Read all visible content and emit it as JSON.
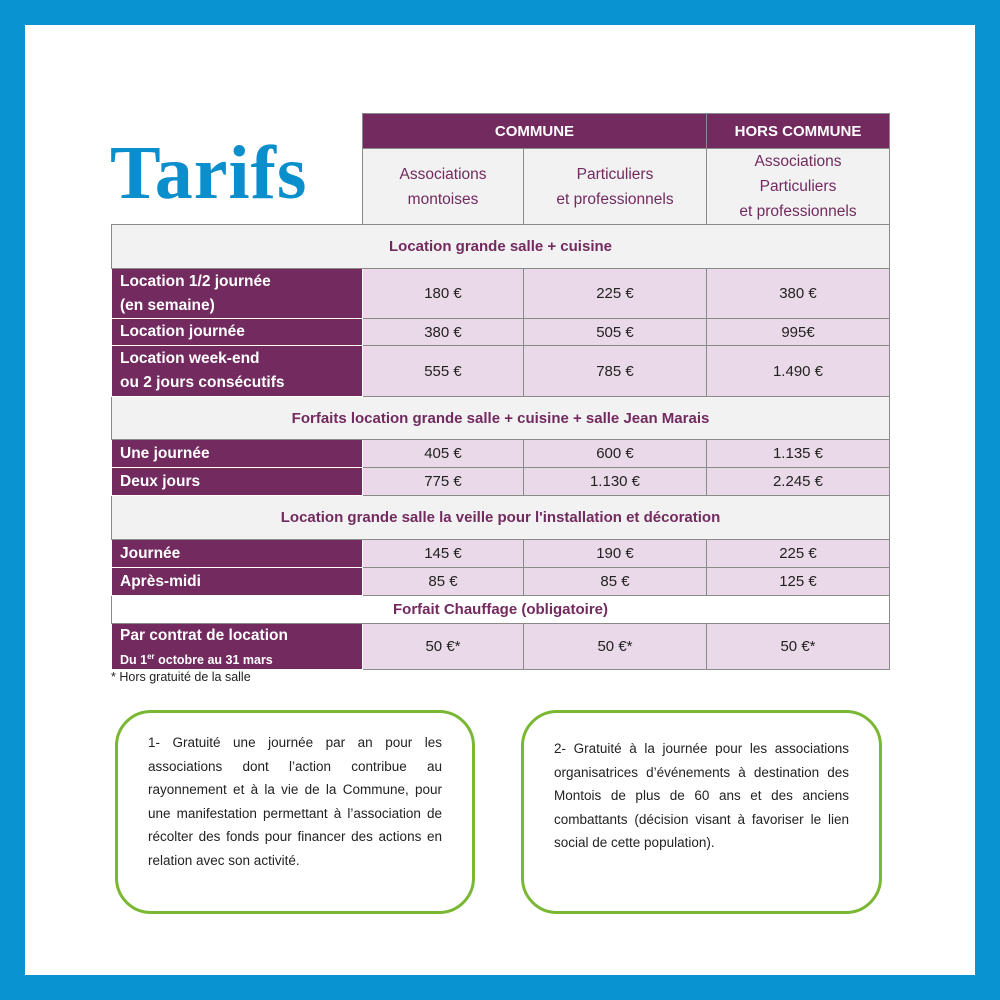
{
  "title": "Tarifs",
  "headers": {
    "commune": "COMMUNE",
    "hors_commune": "HORS COMMUNE",
    "col1": [
      "Associations",
      "montoises"
    ],
    "col2": [
      "Particuliers",
      "et professionnels"
    ],
    "col3": [
      "Associations",
      "Particuliers",
      "et professionnels"
    ]
  },
  "sections": [
    {
      "title": "Location grande salle + cuisine",
      "rows": [
        {
          "label": [
            "Location 1/2 journée",
            "(en semaine)"
          ],
          "values": [
            "180 €",
            "225 €",
            "380 €"
          ]
        },
        {
          "label": [
            "Location journée"
          ],
          "values": [
            "380 €",
            "505 €",
            "995€"
          ]
        },
        {
          "label": [
            "Location week-end",
            "ou 2 jours consécutifs"
          ],
          "values": [
            "555 €",
            "785 €",
            "1.490 €"
          ]
        }
      ]
    },
    {
      "title": "Forfaits location grande salle + cuisine + salle Jean Marais",
      "rows": [
        {
          "label": [
            "Une journée"
          ],
          "values": [
            "405 €",
            "600 €",
            "1.135 €"
          ]
        },
        {
          "label": [
            "Deux jours"
          ],
          "values": [
            "775 €",
            "1.130 €",
            "2.245 €"
          ]
        }
      ]
    },
    {
      "title": "Location grande salle la veille pour l'installation et décoration",
      "rows": [
        {
          "label": [
            "Journée"
          ],
          "values": [
            "145 €",
            "190 €",
            "225 €"
          ]
        },
        {
          "label": [
            "Après-midi"
          ],
          "values": [
            "85 €",
            "85 €",
            "125 €"
          ]
        }
      ]
    },
    {
      "title": "Forfait Chauffage (obligatoire)",
      "rows": [
        {
          "label": [
            "Par contrat de location"
          ],
          "sub": {
            "pre": "Du 1",
            "sup": "er",
            "post": " octobre au 31 mars"
          },
          "values": [
            "50 €*",
            "50 €*",
            "50 €*"
          ]
        }
      ]
    }
  ],
  "footnote": "* Hors gratuité de la salle",
  "box1": "1- Gratuité une journée par an pour les associations dont l’action contribue au rayonnement et à la vie de la Commune, pour une manifestation permettant à l’association de récolter des fonds pour financer des actions en relation avec son activité.",
  "box2": "2- Gratuité à la journée pour les associations organisatrices d’événements à destination des Montois de plus de 60 ans et des anciens combattants (décision visant à favoriser le lien social de cette population).",
  "colors": {
    "frame": "#0a93d1",
    "title": "#0a8fcc",
    "purple": "#722a5f",
    "cell": "#ead9e8",
    "section": "#f2f2f2",
    "box_border": "#7ab833"
  }
}
